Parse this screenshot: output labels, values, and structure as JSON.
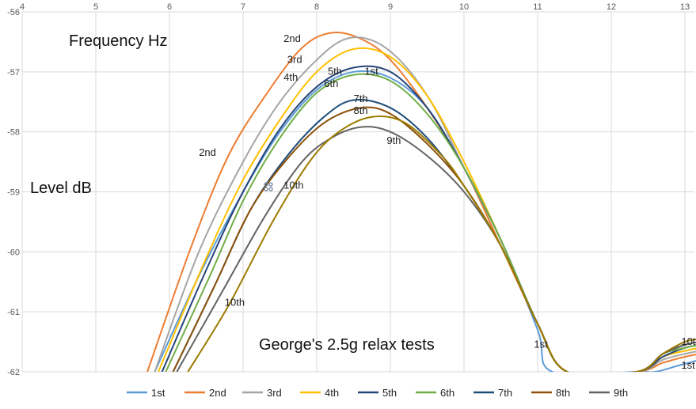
{
  "chart_data": {
    "type": "line",
    "title": "George's 2.5g relax tests",
    "xlabel": "Frequency Hz",
    "ylabel": "Level dB",
    "xlim": [
      4,
      13
    ],
    "ylim": [
      -62,
      -56
    ],
    "x_ticks": [
      "4",
      "5",
      "6",
      "7",
      "8",
      "9",
      "10",
      "11",
      "12",
      "13"
    ],
    "y_ticks": [
      "-56",
      "-57",
      "-58",
      "-59",
      "-60",
      "-61",
      "-62"
    ],
    "grid": true,
    "legend_position": "bottom",
    "series": [
      {
        "name": "1st",
        "color": "#5b9bd5",
        "points": [
          [
            5.8,
            -62
          ],
          [
            6.4,
            -60.4
          ],
          [
            7,
            -59
          ],
          [
            7.5,
            -58
          ],
          [
            8,
            -57.3
          ],
          [
            8.5,
            -57.0
          ],
          [
            9,
            -57.1
          ],
          [
            9.5,
            -57.6
          ],
          [
            10,
            -58.6
          ],
          [
            10.5,
            -59.8
          ],
          [
            11,
            -61.3
          ],
          [
            11.2,
            -62
          ],
          [
            12.35,
            -62
          ],
          [
            12.6,
            -62.0
          ],
          [
            12.9,
            -61.9
          ],
          [
            13.2,
            -61.8
          ]
        ]
      },
      {
        "name": "2nd",
        "color": "#ed7d31",
        "points": [
          [
            5.7,
            -62
          ],
          [
            6.3,
            -59.9
          ],
          [
            6.8,
            -58.4
          ],
          [
            7.3,
            -57.4
          ],
          [
            7.8,
            -56.6
          ],
          [
            8.2,
            -56.35
          ],
          [
            8.6,
            -56.45
          ],
          [
            9,
            -56.8
          ],
          [
            9.5,
            -57.6
          ],
          [
            10,
            -58.6
          ],
          [
            10.5,
            -59.9
          ],
          [
            11,
            -61.2
          ],
          [
            11.4,
            -62
          ],
          [
            12.35,
            -62
          ],
          [
            12.7,
            -61.85
          ],
          [
            13,
            -61.75
          ],
          [
            13.2,
            -61.7
          ]
        ]
      },
      {
        "name": "3rd",
        "color": "#a5a5a5",
        "points": [
          [
            5.8,
            -62
          ],
          [
            6.4,
            -60.0
          ],
          [
            7,
            -58.5
          ],
          [
            7.5,
            -57.5
          ],
          [
            8,
            -56.8
          ],
          [
            8.4,
            -56.45
          ],
          [
            8.8,
            -56.5
          ],
          [
            9.2,
            -56.9
          ],
          [
            9.6,
            -57.6
          ],
          [
            10,
            -58.6
          ],
          [
            10.5,
            -59.8
          ],
          [
            11,
            -61.2
          ],
          [
            11.4,
            -62
          ],
          [
            12.35,
            -62
          ],
          [
            12.7,
            -61.8
          ],
          [
            13,
            -61.7
          ],
          [
            13.2,
            -61.65
          ]
        ]
      },
      {
        "name": "4th",
        "color": "#ffc000",
        "points": [
          [
            5.85,
            -62
          ],
          [
            6.5,
            -60.1
          ],
          [
            7,
            -58.8
          ],
          [
            7.5,
            -57.8
          ],
          [
            8,
            -57.0
          ],
          [
            8.5,
            -56.62
          ],
          [
            9,
            -56.75
          ],
          [
            9.5,
            -57.4
          ],
          [
            10,
            -58.5
          ],
          [
            10.5,
            -59.8
          ],
          [
            11,
            -61.2
          ],
          [
            11.4,
            -62
          ],
          [
            12.35,
            -62
          ],
          [
            12.7,
            -61.75
          ],
          [
            13,
            -61.65
          ],
          [
            13.2,
            -61.6
          ]
        ]
      },
      {
        "name": "5th",
        "color": "#264478",
        "points": [
          [
            5.9,
            -62
          ],
          [
            6.5,
            -60.3
          ],
          [
            7,
            -59.0
          ],
          [
            7.5,
            -57.95
          ],
          [
            8,
            -57.25
          ],
          [
            8.5,
            -56.93
          ],
          [
            9,
            -57.0
          ],
          [
            9.5,
            -57.6
          ],
          [
            10,
            -58.6
          ],
          [
            10.5,
            -59.8
          ],
          [
            11,
            -61.2
          ],
          [
            11.4,
            -62
          ],
          [
            12.35,
            -62
          ],
          [
            12.7,
            -61.75
          ],
          [
            13,
            -61.6
          ],
          [
            13.2,
            -61.55
          ]
        ]
      },
      {
        "name": "6th",
        "color": "#70ad47",
        "points": [
          [
            5.95,
            -62
          ],
          [
            6.55,
            -60.4
          ],
          [
            7,
            -59.15
          ],
          [
            7.5,
            -58.1
          ],
          [
            8,
            -57.35
          ],
          [
            8.5,
            -57.05
          ],
          [
            9,
            -57.15
          ],
          [
            9.5,
            -57.7
          ],
          [
            10,
            -58.6
          ],
          [
            10.5,
            -59.8
          ],
          [
            11,
            -61.2
          ],
          [
            11.4,
            -62
          ],
          [
            12.35,
            -62
          ],
          [
            12.7,
            -61.7
          ],
          [
            13,
            -61.6
          ],
          [
            13.2,
            -61.55
          ]
        ]
      },
      {
        "name": "7th",
        "color": "#1f4e79",
        "points": [
          [
            6.05,
            -62
          ],
          [
            6.6,
            -60.6
          ],
          [
            7.1,
            -59.3
          ],
          [
            7.6,
            -58.4
          ],
          [
            8.1,
            -57.75
          ],
          [
            8.5,
            -57.47
          ],
          [
            9,
            -57.6
          ],
          [
            9.5,
            -58.1
          ],
          [
            10,
            -58.9
          ],
          [
            10.5,
            -59.9
          ],
          [
            11,
            -61.2
          ],
          [
            11.4,
            -62
          ],
          [
            12.35,
            -62
          ],
          [
            12.7,
            -61.7
          ],
          [
            13,
            -61.55
          ],
          [
            13.2,
            -61.5
          ]
        ]
      },
      {
        "name": "8th",
        "color": "#8c510a",
        "points": [
          [
            6.05,
            -62
          ],
          [
            6.6,
            -60.6
          ],
          [
            7.1,
            -59.3
          ],
          [
            7.6,
            -58.45
          ],
          [
            8.1,
            -57.85
          ],
          [
            8.6,
            -57.6
          ],
          [
            9,
            -57.7
          ],
          [
            9.5,
            -58.2
          ],
          [
            10,
            -58.9
          ],
          [
            10.5,
            -59.9
          ],
          [
            11,
            -61.2
          ],
          [
            11.4,
            -62
          ],
          [
            12.35,
            -62
          ],
          [
            12.7,
            -61.7
          ],
          [
            13,
            -61.55
          ],
          [
            13.2,
            -61.5
          ]
        ]
      },
      {
        "name": "9th",
        "color": "#636363",
        "points": [
          [
            6.1,
            -62
          ],
          [
            6.7,
            -60.7
          ],
          [
            7.3,
            -59.4
          ],
          [
            7.8,
            -58.5
          ],
          [
            8.2,
            -58.1
          ],
          [
            8.6,
            -57.92
          ],
          [
            9,
            -58.0
          ],
          [
            9.5,
            -58.4
          ],
          [
            10,
            -59.0
          ],
          [
            10.5,
            -59.9
          ],
          [
            11,
            -61.2
          ],
          [
            11.4,
            -62
          ],
          [
            12.35,
            -62
          ],
          [
            12.7,
            -61.7
          ],
          [
            13,
            -61.55
          ],
          [
            13.2,
            -61.5
          ]
        ]
      },
      {
        "name": "10th",
        "color": "#9c7b00",
        "points": [
          [
            6.25,
            -62
          ],
          [
            6.8,
            -60.9
          ],
          [
            7.4,
            -59.5
          ],
          [
            7.9,
            -58.5
          ],
          [
            8.3,
            -58.0
          ],
          [
            8.75,
            -57.75
          ],
          [
            9.2,
            -57.85
          ],
          [
            9.7,
            -58.4
          ],
          [
            10,
            -58.9
          ],
          [
            10.5,
            -59.9
          ],
          [
            11,
            -61.2
          ],
          [
            11.4,
            -62
          ],
          [
            12.35,
            -62
          ],
          [
            12.7,
            -61.7
          ],
          [
            13,
            -61.5
          ],
          [
            13.2,
            -61.45
          ]
        ]
      }
    ],
    "annotations": [
      {
        "text": "2nd",
        "x": 7.55,
        "y": -56.5
      },
      {
        "text": "3rd",
        "x": 7.6,
        "y": -56.85
      },
      {
        "text": "4th",
        "x": 7.55,
        "y": -57.15
      },
      {
        "text": "5th",
        "x": 8.15,
        "y": -57.05
      },
      {
        "text": "1st",
        "x": 8.65,
        "y": -57.05
      },
      {
        "text": "6th",
        "x": 8.1,
        "y": -57.25
      },
      {
        "text": "7th",
        "x": 8.5,
        "y": -57.5
      },
      {
        "text": "8th",
        "x": 8.5,
        "y": -57.7
      },
      {
        "text": "9th",
        "x": 8.95,
        "y": -58.2
      },
      {
        "text": "2nd",
        "x": 6.4,
        "y": -58.4
      },
      {
        "text": "10th",
        "x": 7.55,
        "y": -58.95
      },
      {
        "text": "10th",
        "x": 6.75,
        "y": -60.9
      },
      {
        "text": "1st",
        "x": 10.95,
        "y": -61.6
      },
      {
        "text": "10th",
        "x": 12.95,
        "y": -61.55
      },
      {
        "text": "1st",
        "x": 12.95,
        "y": -61.95
      }
    ]
  }
}
